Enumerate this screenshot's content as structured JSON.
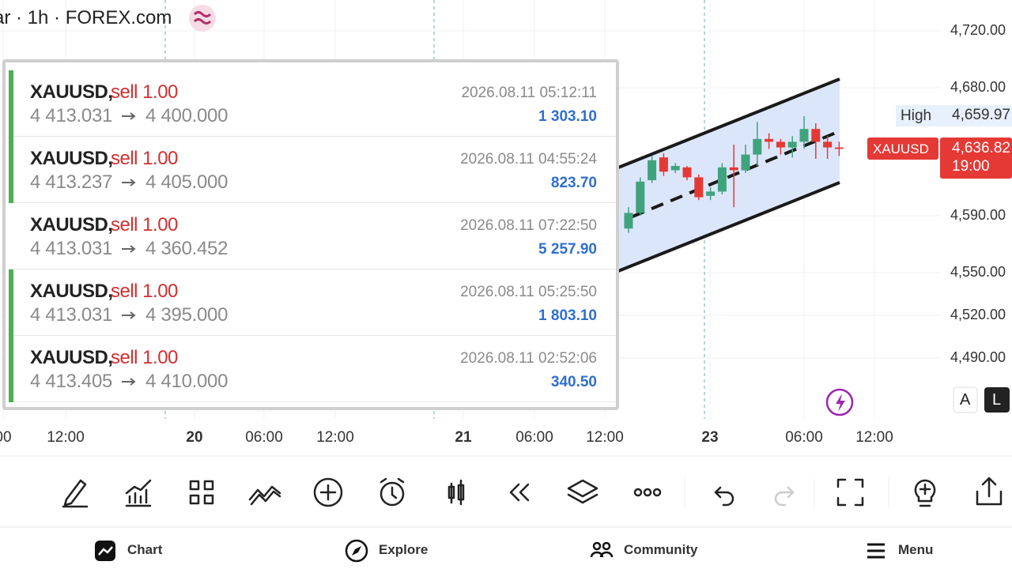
{
  "header": {
    "title": "ar · 1h · FOREX.com"
  },
  "chart": {
    "up_color": "#3fa37d",
    "down_color": "#e53935",
    "price_ticks": [
      {
        "value": 4720,
        "label": "4,720.00"
      },
      {
        "value": 4680,
        "label": "4,680.00"
      },
      {
        "value": 4590,
        "label": "4,590.00"
      },
      {
        "value": 4550,
        "label": "4,550.00"
      },
      {
        "value": 4520,
        "label": "4,520.00"
      },
      {
        "value": 4490,
        "label": "4,490.00"
      }
    ],
    "time_axis": [
      {
        "text": "00",
        "day": false
      },
      {
        "text": "12:00",
        "day": false
      },
      {
        "text": "20",
        "day": true
      },
      {
        "text": "06:00",
        "day": false
      },
      {
        "text": "12:00",
        "day": false
      },
      {
        "text": "21",
        "day": true
      },
      {
        "text": "06:00",
        "day": false
      },
      {
        "text": "12:00",
        "day": false
      },
      {
        "text": "23",
        "day": true
      },
      {
        "text": "06:00",
        "day": false
      },
      {
        "text": "12:00",
        "day": false
      }
    ],
    "candles": [
      {
        "open": 4581,
        "high": 4596,
        "low": 4578,
        "close": 4592
      },
      {
        "open": 4592,
        "high": 4617,
        "low": 4590,
        "close": 4614
      },
      {
        "open": 4615,
        "high": 4632,
        "low": 4613,
        "close": 4629
      },
      {
        "open": 4631,
        "high": 4634,
        "low": 4618,
        "close": 4621
      },
      {
        "open": 4622,
        "high": 4627,
        "low": 4620,
        "close": 4625
      },
      {
        "open": 4624,
        "high": 4625,
        "low": 4615,
        "close": 4617
      },
      {
        "open": 4617,
        "high": 4619,
        "low": 4601,
        "close": 4603
      },
      {
        "open": 4604,
        "high": 4610,
        "low": 4601,
        "close": 4607
      },
      {
        "open": 4607,
        "high": 4627,
        "low": 4605,
        "close": 4624
      },
      {
        "open": 4624,
        "high": 4640,
        "low": 4596,
        "close": 4622
      },
      {
        "open": 4622,
        "high": 4640,
        "low": 4620,
        "close": 4633
      },
      {
        "open": 4633,
        "high": 4656,
        "low": 4625,
        "close": 4644
      },
      {
        "open": 4644,
        "high": 4648,
        "low": 4637,
        "close": 4642
      },
      {
        "open": 4642,
        "high": 4644,
        "low": 4633,
        "close": 4638
      },
      {
        "open": 4638,
        "high": 4646,
        "low": 4631,
        "close": 4642
      },
      {
        "open": 4642,
        "high": 4660,
        "low": 4637,
        "close": 4651
      },
      {
        "open": 4651,
        "high": 4655,
        "low": 4630,
        "close": 4642
      },
      {
        "open": 4642,
        "high": 4646,
        "low": 4630,
        "close": 4638
      },
      {
        "open": 4638,
        "high": 4642,
        "low": 4632,
        "close": 4637
      }
    ],
    "high_label": "High",
    "high_price": "4,659.97",
    "symbol_label": "XAUUSD",
    "last_price": "4,636.82",
    "countdown": "19:00",
    "scale_buttons": [
      "A",
      "L"
    ]
  },
  "trades": [
    {
      "symbol": "XAUUSD,",
      "side": "sell 1.00",
      "open_price": "4 413.031",
      "close_price": "4 400.000",
      "time": "2026.08.11 05:12:11",
      "profit": "1 303.10",
      "marked": true
    },
    {
      "symbol": "XAUUSD,",
      "side": "sell 1.00",
      "open_price": "4 413.237",
      "close_price": "4 405.000",
      "time": "2026.08.11 04:55:24",
      "profit": "823.70",
      "marked": true
    },
    {
      "symbol": "XAUUSD,",
      "side": "sell 1.00",
      "open_price": "4 413.031",
      "close_price": "4 360.452",
      "time": "2026.08.11 07:22:50",
      "profit": "5 257.90",
      "marked": false
    },
    {
      "symbol": "XAUUSD,",
      "side": "sell 1.00",
      "open_price": "4 413.031",
      "close_price": "4 395.000",
      "time": "2026.08.11 05:25:50",
      "profit": "1 803.10",
      "marked": true
    },
    {
      "symbol": "XAUUSD,",
      "side": "sell 1.00",
      "open_price": "4 413.405",
      "close_price": "4 410.000",
      "time": "2026.08.11 02:52:06",
      "profit": "340.50",
      "marked": true
    }
  ],
  "bottom_nav": [
    "Chart",
    "Explore",
    "Community",
    "Menu"
  ]
}
